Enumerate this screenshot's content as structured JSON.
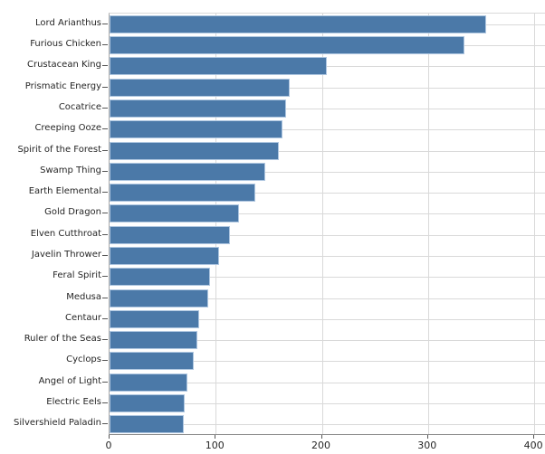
{
  "chart_data": {
    "type": "bar",
    "orientation": "horizontal",
    "title": "",
    "xlabel": "",
    "ylabel": "",
    "categories": [
      "Lord Arianthus",
      "Furious Chicken",
      "Crustacean King",
      "Prismatic Energy",
      "Cocatrice",
      "Creeping Ooze",
      "Spirit of the Forest",
      "Swamp Thing",
      "Earth Elemental",
      "Gold Dragon",
      "Elven Cutthroat",
      "Javelin Thrower",
      "Feral Spirit",
      "Medusa",
      "Centaur",
      "Ruler of the Seas",
      "Cyclops",
      "Angel of Light",
      "Electric Eels",
      "Silvershield Paladin"
    ],
    "values": [
      355,
      334,
      205,
      170,
      166,
      163,
      159,
      147,
      137,
      122,
      113,
      103,
      95,
      93,
      84,
      83,
      79,
      73,
      71,
      70
    ],
    "xlim": [
      0,
      411
    ],
    "x_ticks": [
      "0",
      "100",
      "200",
      "300",
      "400"
    ],
    "x_tick_values": [
      0,
      100,
      200,
      300,
      400
    ],
    "grid": true,
    "legend": false,
    "colors": {
      "bar_fill": "#4b79a8",
      "bar_edge": "#aec6e0",
      "gridline": "#d9d9d9",
      "axis_line": "#8a8a8a",
      "tick": "#555555",
      "text": "#262626"
    }
  }
}
